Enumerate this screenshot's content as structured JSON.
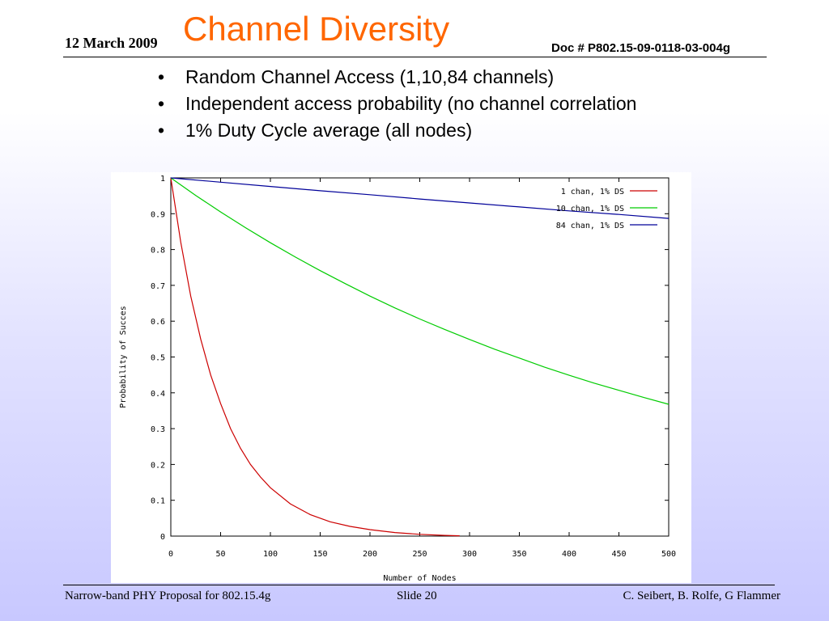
{
  "header": {
    "date": "12 March 2009",
    "title": "Channel Diversity",
    "doc": "Doc # P802.15-09-0118-03-004g"
  },
  "bullets": [
    {
      "symbol": "•",
      "text": "Random Channel Access (1,10,84 channels)"
    },
    {
      "symbol": "•",
      "text": "Independent access probability (no channel correlation"
    },
    {
      "symbol": "•",
      "text": "1% Duty Cycle average (all nodes)"
    }
  ],
  "chart_data": {
    "type": "line",
    "title": "",
    "xlabel": "Number of Nodes",
    "ylabel": "Probability of Succes",
    "xlim": [
      0,
      500
    ],
    "ylim": [
      0,
      1
    ],
    "xticks": [
      "0",
      "50",
      "100",
      "150",
      "200",
      "250",
      "300",
      "350",
      "400",
      "450",
      "500"
    ],
    "yticks": [
      "0",
      "0.1",
      "0.2",
      "0.3",
      "0.4",
      "0.5",
      "0.6",
      "0.7",
      "0.8",
      "0.9",
      "1"
    ],
    "grid": false,
    "legend_position": "top-right",
    "series": [
      {
        "name": "1 chan, 1% DS",
        "color": "#cc0000",
        "x": [
          0,
          10,
          20,
          30,
          40,
          50,
          60,
          70,
          80,
          90,
          100,
          120,
          140,
          160,
          180,
          200,
          225,
          250,
          275,
          290
        ],
        "y": [
          1.0,
          0.82,
          0.67,
          0.55,
          0.45,
          0.37,
          0.3,
          0.245,
          0.2,
          0.165,
          0.135,
          0.09,
          0.06,
          0.04,
          0.027,
          0.018,
          0.01,
          0.005,
          0.002,
          0.001
        ]
      },
      {
        "name": "10 chan, 1% DS",
        "color": "#00cc00",
        "x": [
          0,
          25,
          50,
          75,
          100,
          125,
          150,
          175,
          200,
          225,
          250,
          275,
          300,
          325,
          350,
          375,
          400,
          425,
          450,
          475,
          500
        ],
        "y": [
          1.0,
          0.951,
          0.905,
          0.861,
          0.819,
          0.779,
          0.741,
          0.705,
          0.67,
          0.637,
          0.606,
          0.577,
          0.549,
          0.522,
          0.497,
          0.472,
          0.449,
          0.427,
          0.407,
          0.387,
          0.368
        ]
      },
      {
        "name": "84 chan, 1% DS",
        "color": "#000099",
        "x": [
          0,
          50,
          100,
          150,
          200,
          250,
          300,
          350,
          400,
          450,
          500
        ],
        "y": [
          1.0,
          0.988,
          0.976,
          0.964,
          0.953,
          0.941,
          0.93,
          0.919,
          0.908,
          0.898,
          0.887
        ]
      }
    ]
  },
  "footer": {
    "left": "Narrow-band PHY Proposal for 802.15.4g",
    "middle": "Slide 20",
    "right": "C. Seibert, B. Rolfe, G Flammer"
  }
}
